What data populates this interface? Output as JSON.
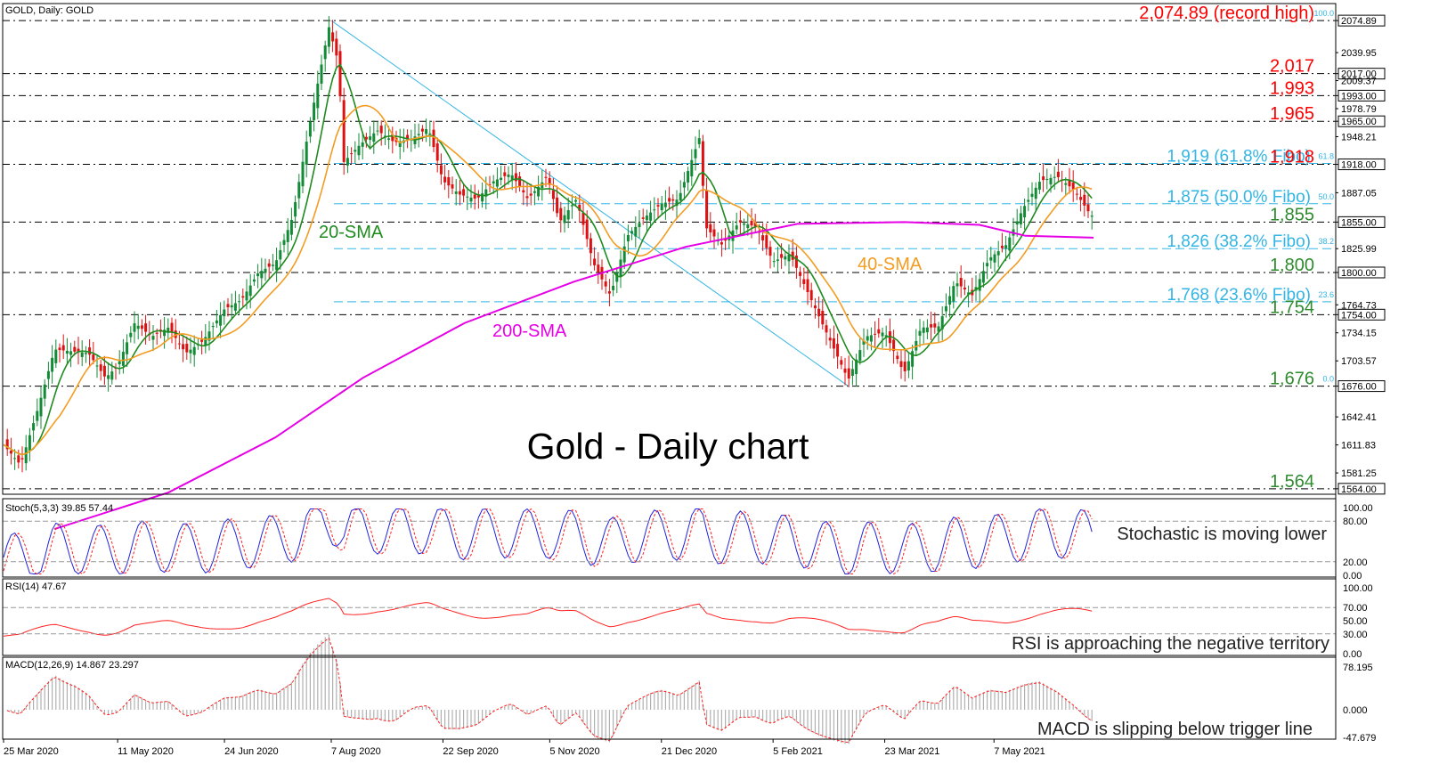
{
  "chart_data": {
    "type": "line",
    "title": "Gold - Daily chart",
    "header": "GOLD, Daily:  GOLD",
    "x_ticks": [
      "25 Mar 2020",
      "11 May 2020",
      "24 Jun 2020",
      "7 Aug 2020",
      "22 Sep 2020",
      "5 Nov 2020",
      "21 Dec 2020",
      "5 Feb 2021",
      "23 Mar 2021",
      "7 May 2021"
    ],
    "price_axis": {
      "ylim": [
        1550,
        2085
      ],
      "ticks": [
        "2074.89",
        "2039.95",
        "2017.00",
        "2009.37",
        "1993.00",
        "1978.79",
        "1965.00",
        "1948.21",
        "1918.00",
        "1887.05",
        "1855.00",
        "1825.99",
        "1800.00",
        "1764.73",
        "1754.00",
        "1734.15",
        "1703.57",
        "1676.00",
        "1642.41",
        "1611.83",
        "1581.25",
        "1564.00"
      ],
      "boxed_ticks": [
        "2074.89",
        "2017.00",
        "1993.00",
        "1965.00",
        "1918.00",
        "1855.00",
        "1800.00",
        "1754.00",
        "1676.00",
        "1564.00"
      ]
    },
    "close_series": [
      [
        "2020-03-25",
        1612
      ],
      [
        "2020-04-01",
        1590
      ],
      [
        "2020-04-08",
        1650
      ],
      [
        "2020-04-15",
        1716
      ],
      [
        "2020-04-22",
        1714
      ],
      [
        "2020-04-29",
        1712
      ],
      [
        "2020-05-06",
        1685
      ],
      [
        "2020-05-11",
        1698
      ],
      [
        "2020-05-18",
        1745
      ],
      [
        "2020-05-25",
        1730
      ],
      [
        "2020-06-01",
        1740
      ],
      [
        "2020-06-08",
        1712
      ],
      [
        "2020-06-15",
        1725
      ],
      [
        "2020-06-24",
        1760
      ],
      [
        "2020-07-01",
        1770
      ],
      [
        "2020-07-08",
        1800
      ],
      [
        "2020-07-15",
        1810
      ],
      [
        "2020-07-22",
        1860
      ],
      [
        "2020-07-29",
        1960
      ],
      [
        "2020-08-06",
        2068
      ],
      [
        "2020-08-10",
        2028
      ],
      [
        "2020-08-12",
        1920
      ],
      [
        "2020-08-19",
        1940
      ],
      [
        "2020-08-26",
        1955
      ],
      [
        "2020-09-02",
        1942
      ],
      [
        "2020-09-09",
        1946
      ],
      [
        "2020-09-16",
        1958
      ],
      [
        "2020-09-22",
        1900
      ],
      [
        "2020-09-29",
        1885
      ],
      [
        "2020-10-06",
        1880
      ],
      [
        "2020-10-13",
        1900
      ],
      [
        "2020-10-20",
        1908
      ],
      [
        "2020-10-27",
        1880
      ],
      [
        "2020-11-04",
        1905
      ],
      [
        "2020-11-09",
        1855
      ],
      [
        "2020-11-16",
        1880
      ],
      [
        "2020-11-23",
        1810
      ],
      [
        "2020-11-30",
        1775
      ],
      [
        "2020-12-07",
        1840
      ],
      [
        "2020-12-14",
        1860
      ],
      [
        "2020-12-21",
        1875
      ],
      [
        "2020-12-28",
        1880
      ],
      [
        "2021-01-06",
        1950
      ],
      [
        "2021-01-08",
        1850
      ],
      [
        "2021-01-15",
        1830
      ],
      [
        "2021-01-22",
        1855
      ],
      [
        "2021-01-29",
        1850
      ],
      [
        "2021-02-05",
        1812
      ],
      [
        "2021-02-12",
        1820
      ],
      [
        "2021-02-19",
        1780
      ],
      [
        "2021-02-26",
        1740
      ],
      [
        "2021-03-05",
        1700
      ],
      [
        "2021-03-08",
        1683
      ],
      [
        "2021-03-15",
        1730
      ],
      [
        "2021-03-23",
        1735
      ],
      [
        "2021-03-31",
        1690
      ],
      [
        "2021-04-07",
        1740
      ],
      [
        "2021-04-14",
        1740
      ],
      [
        "2021-04-21",
        1790
      ],
      [
        "2021-04-28",
        1775
      ],
      [
        "2021-05-05",
        1815
      ],
      [
        "2021-05-12",
        1830
      ],
      [
        "2021-05-19",
        1870
      ],
      [
        "2021-05-26",
        1900
      ],
      [
        "2021-06-02",
        1905
      ],
      [
        "2021-06-09",
        1890
      ],
      [
        "2021-06-16",
        1862
      ]
    ],
    "levels": [
      {
        "value": 2074.89,
        "label": "2,074.89 (record high)",
        "color": "#ff0000",
        "fibo": "100.0"
      },
      {
        "value": 2017,
        "label": "2,017",
        "color": "#ff0000"
      },
      {
        "value": 1993,
        "label": "1,993",
        "color": "#ff0000"
      },
      {
        "value": 1965,
        "label": "1,965",
        "color": "#ff0000"
      },
      {
        "value": 1919,
        "label": "1,919 (61.8% Fibo)",
        "color": "#33b5e5",
        "fibo": "61.8"
      },
      {
        "value": 1918,
        "label": "1,918",
        "color": "#ff0000"
      },
      {
        "value": 1875,
        "label": "1,875 (50.0% Fibo)",
        "color": "#33b5e5",
        "fibo": "50.0"
      },
      {
        "value": 1855,
        "label": "1,855",
        "color": "#2e8b2e"
      },
      {
        "value": 1826,
        "label": "1,826 (38.2% Fibo)",
        "color": "#33b5e5",
        "fibo": "38.2"
      },
      {
        "value": 1800,
        "label": "1,800",
        "color": "#2e8b2e"
      },
      {
        "value": 1768,
        "label": "1,768 (23.6% Fibo)",
        "color": "#33b5e5",
        "fibo": "23.6"
      },
      {
        "value": 1754,
        "label": "1,754",
        "color": "#2e8b2e"
      },
      {
        "value": 1676,
        "label": "1,676",
        "color": "#2e8b2e",
        "fibo": "0.0"
      },
      {
        "value": 1564,
        "label": "1,564",
        "color": "#2e8b2e"
      }
    ],
    "series": [
      {
        "name": "20-SMA",
        "color": "#1f8b1f"
      },
      {
        "name": "40-SMA",
        "color": "#f39c22"
      },
      {
        "name": "200-SMA",
        "color": "#e600e6"
      }
    ],
    "panes": {
      "stoch": {
        "label": "Stoch(5,3,3) 39.85 57.44",
        "ticks": [
          "100.00",
          "80.00",
          "20.00",
          "0.00"
        ],
        "note": "Stochastic is moving lower"
      },
      "rsi": {
        "label": "RSI(14) 47.67",
        "ticks": [
          "100.00",
          "70.00",
          "50.00",
          "30.00",
          "0.00"
        ],
        "note": "RSI is approaching the negative territory"
      },
      "macd": {
        "label": "MACD(12,26,9) 14.867 23.297",
        "ticks": [
          "78.195",
          "0.000",
          "-47.679"
        ],
        "note": "MACD is slipping below trigger line"
      }
    }
  }
}
